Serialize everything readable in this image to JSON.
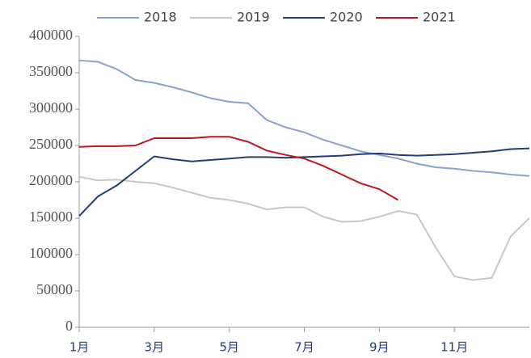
{
  "chart_data": {
    "type": "line",
    "x": [
      1,
      1.5,
      2,
      2.5,
      3,
      3.5,
      4,
      4.5,
      5,
      5.5,
      6,
      6.5,
      7,
      7.5,
      8,
      8.5,
      9,
      9.5,
      10,
      10.5,
      11,
      11.5,
      12,
      12.5,
      13
    ],
    "series": [
      {
        "name": "2018",
        "color": "#8aa3cc",
        "values": [
          367000,
          365000,
          355000,
          340000,
          336000,
          330000,
          323000,
          315000,
          310000,
          308000,
          285000,
          275000,
          268000,
          258000,
          250000,
          242000,
          237000,
          232000,
          225000,
          220000,
          218000,
          215000,
          213000,
          210000,
          208000
        ]
      },
      {
        "name": "2019",
        "color": "#c8c8c8",
        "values": [
          207000,
          202000,
          203000,
          200000,
          198000,
          192000,
          185000,
          178000,
          175000,
          170000,
          162000,
          165000,
          165000,
          152000,
          145000,
          146000,
          152000,
          160000,
          155000,
          110000,
          70000,
          65000,
          68000,
          125000,
          150000
        ]
      },
      {
        "name": "2020",
        "color": "#1f3d7a",
        "values": [
          153000,
          180000,
          195000,
          215000,
          235000,
          231000,
          228000,
          230000,
          232000,
          234000,
          234000,
          233000,
          234000,
          235000,
          236000,
          238000,
          239000,
          237000,
          236000,
          237000,
          238000,
          240000,
          242000,
          245000,
          246000
        ]
      },
      {
        "name": "2021",
        "color": "#c0161f",
        "values": [
          248000,
          249000,
          249000,
          250000,
          260000,
          260000,
          260000,
          262000,
          262000,
          255000,
          243000,
          237000,
          232000,
          222000,
          210000,
          198000,
          190000,
          175000,
          null,
          null,
          null,
          null,
          null,
          null,
          null
        ]
      }
    ],
    "xlim": [
      1,
      13
    ],
    "xticks": [
      {
        "value": 1,
        "label": "1月"
      },
      {
        "value": 3,
        "label": "3月"
      },
      {
        "value": 5,
        "label": "5月"
      },
      {
        "value": 7,
        "label": "7月"
      },
      {
        "value": 9,
        "label": "9月"
      },
      {
        "value": 11,
        "label": "11月"
      }
    ],
    "ylim": [
      0,
      400000
    ],
    "yticks": [
      0,
      50000,
      100000,
      150000,
      200000,
      250000,
      300000,
      350000,
      400000
    ]
  }
}
